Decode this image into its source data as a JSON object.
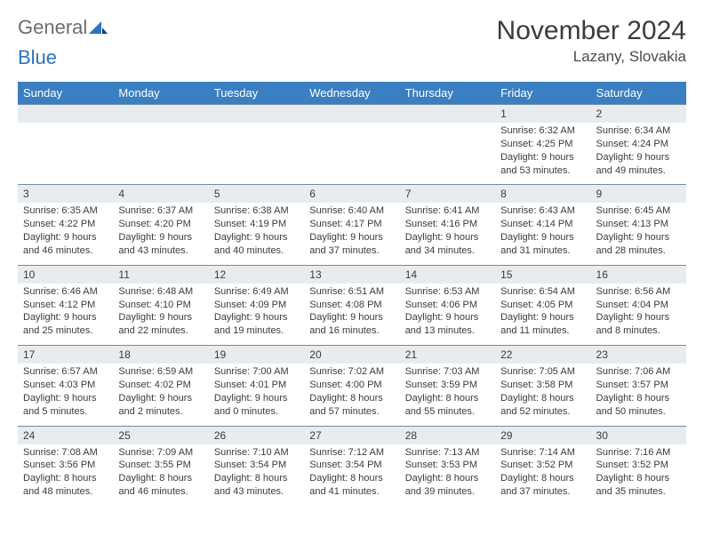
{
  "logo": {
    "text1": "General",
    "text2": "Blue"
  },
  "title": "November 2024",
  "location": "Lazany, Slovakia",
  "dow": [
    "Sunday",
    "Monday",
    "Tuesday",
    "Wednesday",
    "Thursday",
    "Friday",
    "Saturday"
  ],
  "colors": {
    "header_bg": "#3a7fc1",
    "header_text": "#ffffff",
    "daynum_bg": "#e9ecef",
    "border": "#6e8ba8",
    "text": "#3b3b3b",
    "logo_gray": "#6d6d6d",
    "logo_blue": "#2a74c1"
  },
  "weeks": [
    [
      null,
      null,
      null,
      null,
      null,
      {
        "n": "1",
        "sr": "6:32 AM",
        "ss": "4:25 PM",
        "dl": "9 hours and 53 minutes."
      },
      {
        "n": "2",
        "sr": "6:34 AM",
        "ss": "4:24 PM",
        "dl": "9 hours and 49 minutes."
      }
    ],
    [
      {
        "n": "3",
        "sr": "6:35 AM",
        "ss": "4:22 PM",
        "dl": "9 hours and 46 minutes."
      },
      {
        "n": "4",
        "sr": "6:37 AM",
        "ss": "4:20 PM",
        "dl": "9 hours and 43 minutes."
      },
      {
        "n": "5",
        "sr": "6:38 AM",
        "ss": "4:19 PM",
        "dl": "9 hours and 40 minutes."
      },
      {
        "n": "6",
        "sr": "6:40 AM",
        "ss": "4:17 PM",
        "dl": "9 hours and 37 minutes."
      },
      {
        "n": "7",
        "sr": "6:41 AM",
        "ss": "4:16 PM",
        "dl": "9 hours and 34 minutes."
      },
      {
        "n": "8",
        "sr": "6:43 AM",
        "ss": "4:14 PM",
        "dl": "9 hours and 31 minutes."
      },
      {
        "n": "9",
        "sr": "6:45 AM",
        "ss": "4:13 PM",
        "dl": "9 hours and 28 minutes."
      }
    ],
    [
      {
        "n": "10",
        "sr": "6:46 AM",
        "ss": "4:12 PM",
        "dl": "9 hours and 25 minutes."
      },
      {
        "n": "11",
        "sr": "6:48 AM",
        "ss": "4:10 PM",
        "dl": "9 hours and 22 minutes."
      },
      {
        "n": "12",
        "sr": "6:49 AM",
        "ss": "4:09 PM",
        "dl": "9 hours and 19 minutes."
      },
      {
        "n": "13",
        "sr": "6:51 AM",
        "ss": "4:08 PM",
        "dl": "9 hours and 16 minutes."
      },
      {
        "n": "14",
        "sr": "6:53 AM",
        "ss": "4:06 PM",
        "dl": "9 hours and 13 minutes."
      },
      {
        "n": "15",
        "sr": "6:54 AM",
        "ss": "4:05 PM",
        "dl": "9 hours and 11 minutes."
      },
      {
        "n": "16",
        "sr": "6:56 AM",
        "ss": "4:04 PM",
        "dl": "9 hours and 8 minutes."
      }
    ],
    [
      {
        "n": "17",
        "sr": "6:57 AM",
        "ss": "4:03 PM",
        "dl": "9 hours and 5 minutes."
      },
      {
        "n": "18",
        "sr": "6:59 AM",
        "ss": "4:02 PM",
        "dl": "9 hours and 2 minutes."
      },
      {
        "n": "19",
        "sr": "7:00 AM",
        "ss": "4:01 PM",
        "dl": "9 hours and 0 minutes."
      },
      {
        "n": "20",
        "sr": "7:02 AM",
        "ss": "4:00 PM",
        "dl": "8 hours and 57 minutes."
      },
      {
        "n": "21",
        "sr": "7:03 AM",
        "ss": "3:59 PM",
        "dl": "8 hours and 55 minutes."
      },
      {
        "n": "22",
        "sr": "7:05 AM",
        "ss": "3:58 PM",
        "dl": "8 hours and 52 minutes."
      },
      {
        "n": "23",
        "sr": "7:06 AM",
        "ss": "3:57 PM",
        "dl": "8 hours and 50 minutes."
      }
    ],
    [
      {
        "n": "24",
        "sr": "7:08 AM",
        "ss": "3:56 PM",
        "dl": "8 hours and 48 minutes."
      },
      {
        "n": "25",
        "sr": "7:09 AM",
        "ss": "3:55 PM",
        "dl": "8 hours and 46 minutes."
      },
      {
        "n": "26",
        "sr": "7:10 AM",
        "ss": "3:54 PM",
        "dl": "8 hours and 43 minutes."
      },
      {
        "n": "27",
        "sr": "7:12 AM",
        "ss": "3:54 PM",
        "dl": "8 hours and 41 minutes."
      },
      {
        "n": "28",
        "sr": "7:13 AM",
        "ss": "3:53 PM",
        "dl": "8 hours and 39 minutes."
      },
      {
        "n": "29",
        "sr": "7:14 AM",
        "ss": "3:52 PM",
        "dl": "8 hours and 37 minutes."
      },
      {
        "n": "30",
        "sr": "7:16 AM",
        "ss": "3:52 PM",
        "dl": "8 hours and 35 minutes."
      }
    ]
  ],
  "labels": {
    "sunrise": "Sunrise: ",
    "sunset": "Sunset: ",
    "daylight": "Daylight: "
  }
}
